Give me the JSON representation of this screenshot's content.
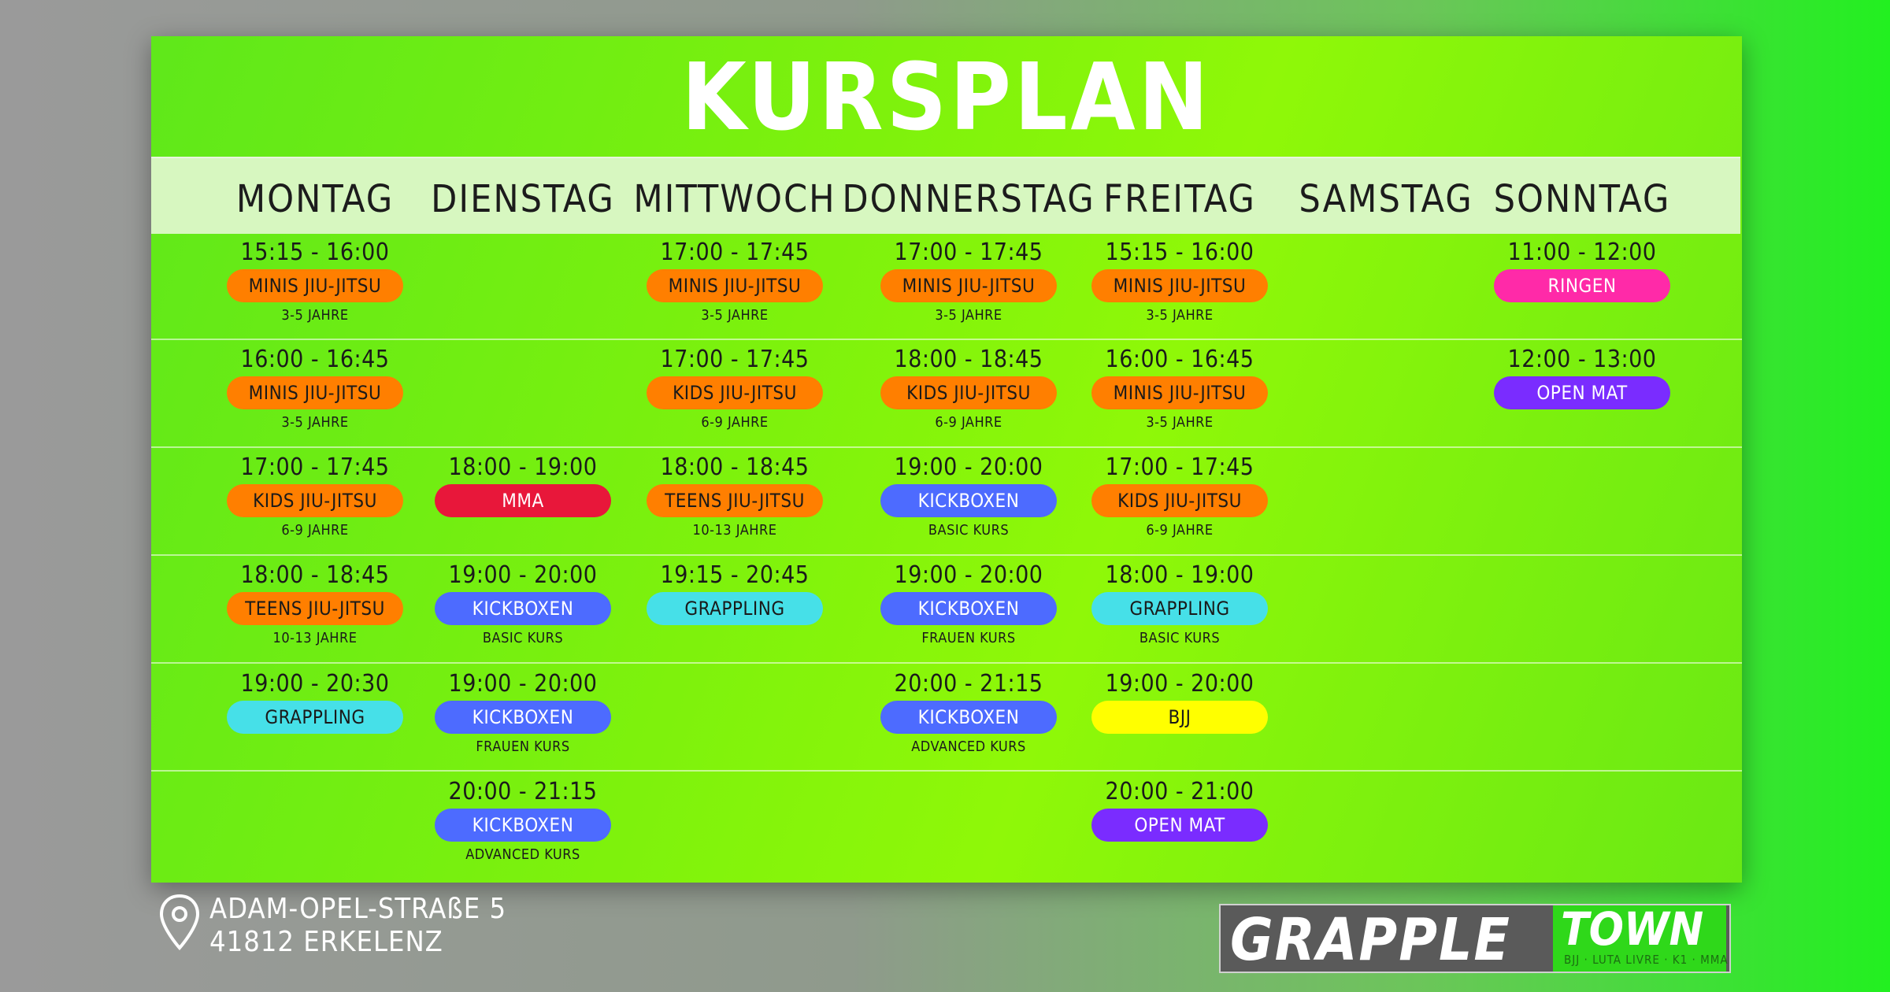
{
  "title": "KURSPLAN",
  "days": [
    "MONTAG",
    "DIENSTAG",
    "MITTWOCH",
    "DONNERSTAG",
    "FREITAG",
    "SAMSTAG",
    "SONNTAG"
  ],
  "colors": {
    "orange": "#ff7f00",
    "red": "#e8173a",
    "blue": "#4d6bff",
    "cyan": "#46e0e8",
    "yellow": "#ffff00",
    "purple": "#7a2cff",
    "pink": "#ff2aa8"
  },
  "schedule": [
    {
      "day": 0,
      "row": 0,
      "time": "15:15 - 16:00",
      "label": "MINIS JIU-JITSU",
      "sub": "3-5 JAHRE",
      "color": "orange"
    },
    {
      "day": 0,
      "row": 1,
      "time": "16:00 - 16:45",
      "label": "MINIS JIU-JITSU",
      "sub": "3-5 JAHRE",
      "color": "orange"
    },
    {
      "day": 0,
      "row": 2,
      "time": "17:00 - 17:45",
      "label": "KIDS JIU-JITSU",
      "sub": "6-9 JAHRE",
      "color": "orange"
    },
    {
      "day": 0,
      "row": 3,
      "time": "18:00 - 18:45",
      "label": "TEENS JIU-JITSU",
      "sub": "10-13 JAHRE",
      "color": "orange"
    },
    {
      "day": 0,
      "row": 4,
      "time": "19:00 - 20:30",
      "label": "GRAPPLING",
      "sub": "",
      "color": "cyan"
    },
    {
      "day": 1,
      "row": 2,
      "time": "18:00 - 19:00",
      "label": "MMA",
      "sub": "",
      "color": "red"
    },
    {
      "day": 1,
      "row": 3,
      "time": "19:00 - 20:00",
      "label": "KICKBOXEN",
      "sub": "BASIC KURS",
      "color": "blue"
    },
    {
      "day": 1,
      "row": 4,
      "time": "19:00 - 20:00",
      "label": "KICKBOXEN",
      "sub": "FRAUEN KURS",
      "color": "blue"
    },
    {
      "day": 1,
      "row": 5,
      "time": "20:00 - 21:15",
      "label": "KICKBOXEN",
      "sub": "ADVANCED KURS",
      "color": "blue"
    },
    {
      "day": 2,
      "row": 0,
      "time": "17:00 - 17:45",
      "label": "MINIS JIU-JITSU",
      "sub": "3-5 JAHRE",
      "color": "orange"
    },
    {
      "day": 2,
      "row": 1,
      "time": "17:00 - 17:45",
      "label": "KIDS JIU-JITSU",
      "sub": "6-9 JAHRE",
      "color": "orange"
    },
    {
      "day": 2,
      "row": 2,
      "time": "18:00 - 18:45",
      "label": "TEENS JIU-JITSU",
      "sub": "10-13 JAHRE",
      "color": "orange"
    },
    {
      "day": 2,
      "row": 3,
      "time": "19:15 - 20:45",
      "label": "GRAPPLING",
      "sub": "",
      "color": "cyan"
    },
    {
      "day": 3,
      "row": 0,
      "time": "17:00 - 17:45",
      "label": "MINIS JIU-JITSU",
      "sub": "3-5 JAHRE",
      "color": "orange"
    },
    {
      "day": 3,
      "row": 1,
      "time": "18:00 - 18:45",
      "label": "KIDS JIU-JITSU",
      "sub": "6-9 JAHRE",
      "color": "orange"
    },
    {
      "day": 3,
      "row": 2,
      "time": "19:00 - 20:00",
      "label": "KICKBOXEN",
      "sub": "BASIC KURS",
      "color": "blue"
    },
    {
      "day": 3,
      "row": 3,
      "time": "19:00 - 20:00",
      "label": "KICKBOXEN",
      "sub": "FRAUEN KURS",
      "color": "blue"
    },
    {
      "day": 3,
      "row": 4,
      "time": "20:00 - 21:15",
      "label": "KICKBOXEN",
      "sub": "ADVANCED KURS",
      "color": "blue"
    },
    {
      "day": 4,
      "row": 0,
      "time": "15:15 - 16:00",
      "label": "MINIS JIU-JITSU",
      "sub": "3-5 JAHRE",
      "color": "orange"
    },
    {
      "day": 4,
      "row": 1,
      "time": "16:00 - 16:45",
      "label": "MINIS JIU-JITSU",
      "sub": "3-5 JAHRE",
      "color": "orange"
    },
    {
      "day": 4,
      "row": 2,
      "time": "17:00 - 17:45",
      "label": "KIDS JIU-JITSU",
      "sub": "6-9 JAHRE",
      "color": "orange"
    },
    {
      "day": 4,
      "row": 3,
      "time": "18:00 - 19:00",
      "label": "GRAPPLING",
      "sub": "BASIC KURS",
      "color": "cyan"
    },
    {
      "day": 4,
      "row": 4,
      "time": "19:00 - 20:00",
      "label": "BJJ",
      "sub": "",
      "color": "yellow"
    },
    {
      "day": 4,
      "row": 5,
      "time": "20:00 - 21:00",
      "label": "OPEN MAT",
      "sub": "",
      "color": "purple"
    },
    {
      "day": 6,
      "row": 0,
      "time": "11:00 - 12:00",
      "label": "RINGEN",
      "sub": "",
      "color": "pink"
    },
    {
      "day": 6,
      "row": 1,
      "time": "12:00 - 13:00",
      "label": "OPEN MAT",
      "sub": "",
      "color": "purple"
    }
  ],
  "address": {
    "icon": "map-pin-icon",
    "line1": "ADAM-OPEL-STRAßE 5",
    "line2": "41812 ERKELENZ"
  },
  "logo": {
    "part1": "GRAPPLE",
    "part2": "TOWN",
    "tagline": "BJJ · LUTA LIVRE · K1 · MMA"
  }
}
